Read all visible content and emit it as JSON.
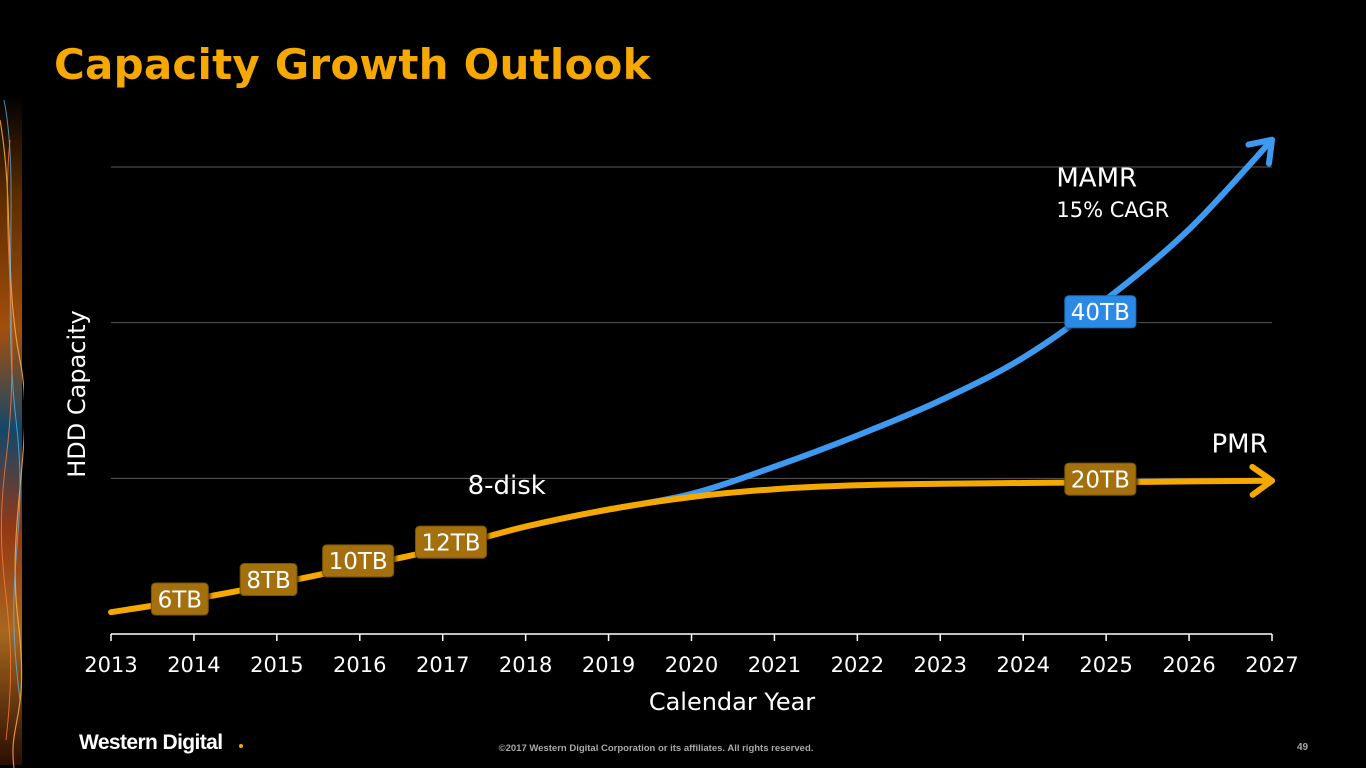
{
  "slide": {
    "title": "Capacity Growth Outlook",
    "brand": "Western Digital",
    "copyright": "©2017 Western Digital Corporation or its affiliates. All rights reserved.",
    "page_number": "49"
  },
  "colors": {
    "background": "#000000",
    "title": "#f5a800",
    "pmr_line": "#f5a800",
    "mamr_line": "#3d9af0",
    "label_box_gold": "#a4700a",
    "label_box_blue": "#2b8ae6",
    "gridline": "#5a5a5a",
    "text": "#ffffff"
  },
  "chart_data": {
    "type": "line",
    "xlabel": "Calendar Year",
    "ylabel": "HDD Capacity",
    "x_ticks": [
      "2013",
      "2014",
      "2015",
      "2016",
      "2017",
      "2018",
      "2019",
      "2020",
      "2021",
      "2022",
      "2023",
      "2024",
      "2025",
      "2026",
      "2027"
    ],
    "xlim": [
      2013,
      2027
    ],
    "ylim": [
      0,
      60
    ],
    "y_gridlines": [
      20,
      40,
      60
    ],
    "grid": true,
    "series": [
      {
        "name": "PMR",
        "color": "#f5a800",
        "points": [
          [
            2013,
            2.8
          ],
          [
            2014,
            4.5
          ],
          [
            2015,
            6.5
          ],
          [
            2016,
            8.7
          ],
          [
            2017,
            11.0
          ],
          [
            2018,
            13.8
          ],
          [
            2019,
            16.0
          ],
          [
            2020,
            17.6
          ],
          [
            2021,
            18.6
          ],
          [
            2022,
            19.1
          ],
          [
            2023,
            19.3
          ],
          [
            2024,
            19.4
          ],
          [
            2025,
            19.5
          ],
          [
            2026,
            19.6
          ],
          [
            2027,
            19.7
          ]
        ],
        "arrow": true
      },
      {
        "name": "MAMR",
        "subtitle": "15% CAGR",
        "color": "#3d9af0",
        "points": [
          [
            2019,
            16.0
          ],
          [
            2020,
            18.0
          ],
          [
            2021,
            21.5
          ],
          [
            2022,
            25.5
          ],
          [
            2023,
            30.0
          ],
          [
            2024,
            35.5
          ],
          [
            2025,
            43.0
          ],
          [
            2026,
            52.0
          ],
          [
            2027,
            63.5
          ]
        ],
        "arrow": true
      }
    ],
    "point_labels": [
      {
        "text": "6TB",
        "x": 2013.83,
        "y": 4.5,
        "style": "gold"
      },
      {
        "text": "8TB",
        "x": 2014.9,
        "y": 7.0,
        "style": "gold"
      },
      {
        "text": "10TB",
        "x": 2015.98,
        "y": 9.4,
        "style": "gold"
      },
      {
        "text": "12TB",
        "x": 2017.1,
        "y": 11.8,
        "style": "gold"
      },
      {
        "text": "40TB",
        "x": 2024.93,
        "y": 41.4,
        "style": "blue"
      },
      {
        "text": "20TB",
        "x": 2024.93,
        "y": 19.9,
        "style": "gold"
      }
    ],
    "annotations": [
      {
        "text": "8-disk",
        "x": 2017.3,
        "y": 18.0,
        "size": 26
      },
      {
        "text": "MAMR",
        "x": 2024.4,
        "y": 57.5,
        "size": 26
      },
      {
        "text": "15% CAGR",
        "x": 2024.4,
        "y": 53.6,
        "size": 21
      },
      {
        "text": "PMR",
        "x": 2026.27,
        "y": 23.3,
        "size": 26
      }
    ]
  }
}
